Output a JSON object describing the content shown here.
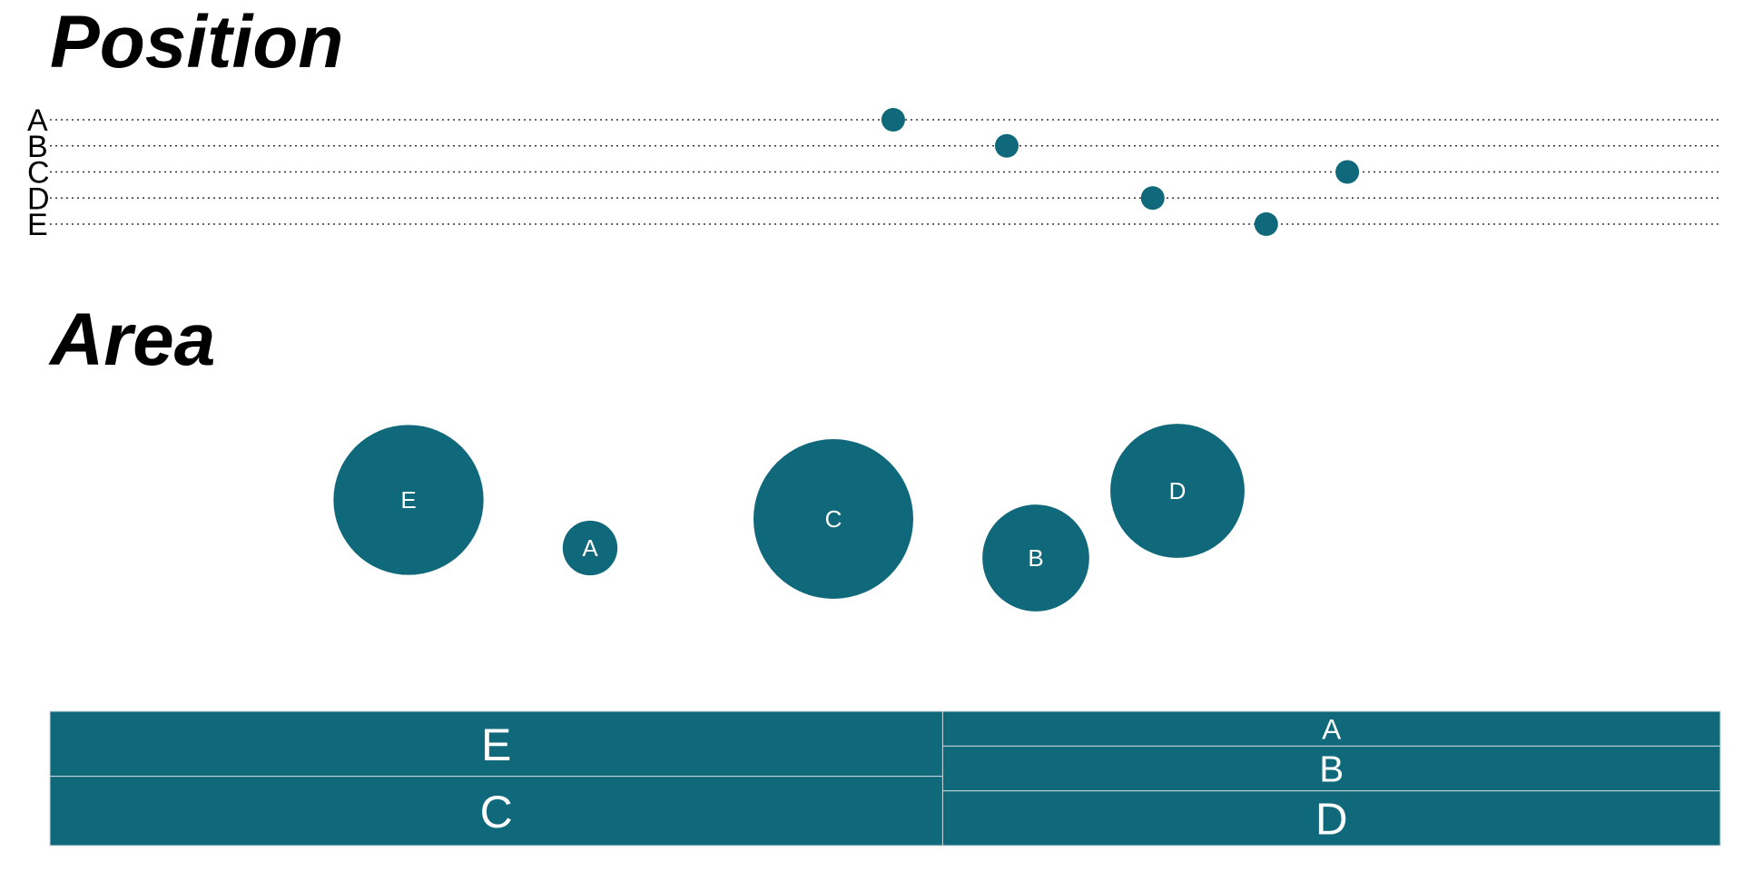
{
  "colors": {
    "mark": "#10697a",
    "tile_border": "#c8d6da",
    "guide": "#333333"
  },
  "chart_data": [
    {
      "type": "scatter",
      "title": "Position",
      "categories": [
        "A",
        "B",
        "C",
        "D",
        "E"
      ],
      "values": [
        52,
        59,
        80,
        68,
        75
      ],
      "xlim": [
        0,
        103
      ],
      "grid": "dotted-horizontal"
    },
    {
      "type": "bubble",
      "title": "Area",
      "points": [
        {
          "label": "E",
          "value": 75
        },
        {
          "label": "A",
          "value": 10
        },
        {
          "label": "C",
          "value": 85
        },
        {
          "label": "B",
          "value": 38
        },
        {
          "label": "D",
          "value": 60
        }
      ]
    },
    {
      "type": "treemap",
      "columns": [
        {
          "tiles": [
            {
              "label": "E",
              "value": 75
            },
            {
              "label": "C",
              "value": 80
            }
          ]
        },
        {
          "tiles": [
            {
              "label": "A",
              "value": 35
            },
            {
              "label": "B",
              "value": 45
            },
            {
              "label": "D",
              "value": 55
            }
          ]
        }
      ]
    }
  ]
}
